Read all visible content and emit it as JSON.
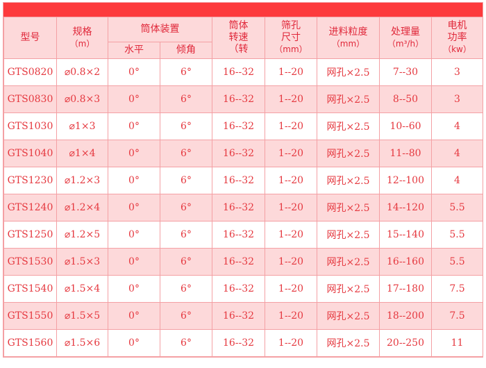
{
  "header": {
    "model": "型号",
    "spec": "规格",
    "spec_unit": "（m）",
    "drum": "筒体装置",
    "horizontal": "水平",
    "incline": "倾角",
    "speed_l1": "筒体",
    "speed_l2": "转速",
    "speed_l3": "（转",
    "hole_l1": "筛孔",
    "hole_l2": "尺寸",
    "hole_unit": "（mm）",
    "feed": "进料粒度",
    "feed_unit": "（mm）",
    "capacity": "处理量",
    "capacity_unit": "（m³/h）",
    "power_l1": "电机",
    "power_l2": "功率",
    "power_unit": "（kw）"
  },
  "rows": [
    [
      "GTS0820",
      "⌀0.8×2",
      "0°",
      "6°",
      "16--32",
      "1--20",
      "网孔×2.5",
      "7--30",
      "3"
    ],
    [
      "GTS0830",
      "⌀0.8×3",
      "0°",
      "6°",
      "16--32",
      "1--20",
      "网孔×2.5",
      "8--50",
      "3"
    ],
    [
      "GTS1030",
      "⌀1×3",
      "0°",
      "6°",
      "16--32",
      "1--20",
      "网孔×2.5",
      "10--60",
      "4"
    ],
    [
      "GTS1040",
      "⌀1×4",
      "0°",
      "6°",
      "16--32",
      "1--20",
      "网孔×2.5",
      "11--80",
      "4"
    ],
    [
      "GTS1230",
      "⌀1.2×3",
      "0°",
      "6°",
      "16--32",
      "1--20",
      "网孔×2.5",
      "12--100",
      "4"
    ],
    [
      "GTS1240",
      "⌀1.2×4",
      "0°",
      "6°",
      "16--32",
      "1--20",
      "网孔×2.5",
      "14--120",
      "5.5"
    ],
    [
      "GTS1250",
      "⌀1.2×5",
      "0°",
      "6°",
      "16--32",
      "1--20",
      "网孔×2.5",
      "15--140",
      "5.5"
    ],
    [
      "GTS1530",
      "⌀1.5×3",
      "0°",
      "6°",
      "16--32",
      "1--20",
      "网孔×2.5",
      "16--160",
      "5.5"
    ],
    [
      "GTS1540",
      "⌀1.5×4",
      "0°",
      "6°",
      "16--32",
      "1--20",
      "网孔×2.5",
      "17--180",
      "7.5"
    ],
    [
      "GTS1550",
      "⌀1.5×5",
      "0°",
      "6°",
      "16--32",
      "1--20",
      "网孔×2.5",
      "18--200",
      "7.5"
    ],
    [
      "GTS1560",
      "⌀1.5×6",
      "0°",
      "6°",
      "16--32",
      "1--20",
      "网孔×2.5",
      "20--250",
      "11"
    ]
  ],
  "colors": {
    "bar": "#fd3a3c",
    "header_bg": "#fdd9da",
    "text": "#e5383f"
  }
}
